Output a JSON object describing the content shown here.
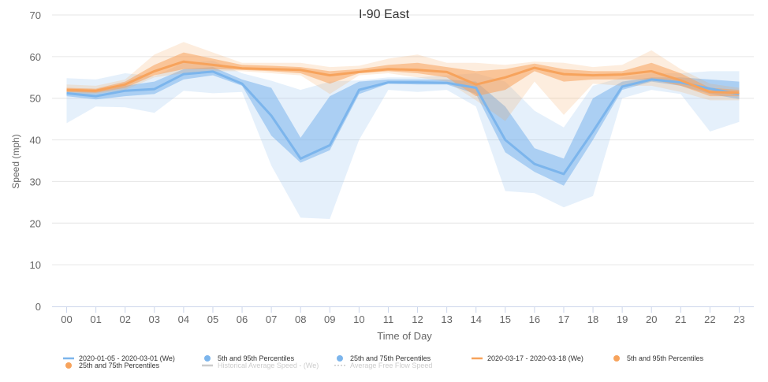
{
  "chart_data": {
    "type": "area",
    "title": "I-90 East",
    "xlabel": "Time of Day",
    "ylabel": "Speed (mph)",
    "ylim": [
      0,
      70
    ],
    "y_ticks": [
      0,
      10,
      20,
      30,
      40,
      50,
      60,
      70
    ],
    "categories": [
      "00",
      "01",
      "02",
      "03",
      "04",
      "05",
      "06",
      "07",
      "08",
      "09",
      "10",
      "11",
      "12",
      "13",
      "14",
      "15",
      "16",
      "17",
      "18",
      "19",
      "20",
      "21",
      "22",
      "23"
    ],
    "grid": true,
    "legend_position": "bottom",
    "series": [
      {
        "name": "2020-01-05 - 2020-03-01 (We)",
        "color": "#7cb5ec",
        "mean": [
          51.2,
          50.5,
          51.8,
          52.2,
          55.8,
          56.4,
          53.5,
          45.8,
          35.5,
          38.7,
          52.0,
          53.8,
          53.8,
          53.7,
          52.5,
          40.0,
          34.2,
          31.8,
          42.0,
          52.8,
          54.5,
          53.8,
          52.3,
          51.0
        ],
        "p5": [
          44.0,
          48.0,
          47.8,
          46.5,
          51.8,
          51.2,
          51.5,
          33.8,
          21.3,
          21.0,
          40.0,
          52.0,
          51.5,
          52.0,
          48.0,
          27.7,
          27.2,
          23.8,
          26.5,
          50.0,
          52.0,
          51.0,
          42.0,
          44.3
        ],
        "p95": [
          54.8,
          54.5,
          56.0,
          55.3,
          58.5,
          59.0,
          56.0,
          54.2,
          52.0,
          54.0,
          54.3,
          55.0,
          55.0,
          55.5,
          56.0,
          54.0,
          47.0,
          43.0,
          53.0,
          55.0,
          56.0,
          56.0,
          56.5,
          56.5
        ],
        "p25": [
          50.5,
          49.7,
          50.5,
          51.0,
          54.5,
          55.5,
          53.0,
          41.0,
          34.5,
          37.5,
          51.0,
          53.5,
          53.3,
          53.3,
          51.0,
          37.0,
          32.3,
          29.0,
          40.0,
          52.0,
          54.0,
          53.0,
          51.0,
          49.8
        ],
        "p75": [
          52.0,
          51.5,
          53.0,
          54.0,
          57.0,
          57.5,
          54.5,
          52.5,
          40.5,
          50.5,
          54.0,
          54.5,
          54.5,
          54.5,
          54.0,
          48.0,
          38.0,
          35.5,
          50.0,
          54.0,
          55.0,
          55.0,
          54.5,
          54.0
        ]
      },
      {
        "name": "2020-03-17 - 2020-03-18 (We)",
        "color": "#f7a35c",
        "mean": [
          52.0,
          51.8,
          53.3,
          56.5,
          58.8,
          58.0,
          57.2,
          57.0,
          56.8,
          55.5,
          56.3,
          57.0,
          56.8,
          56.3,
          53.3,
          55.0,
          57.3,
          55.8,
          55.5,
          55.7,
          56.5,
          54.3,
          51.5,
          51.3
        ],
        "p5": [
          51.0,
          51.0,
          52.0,
          55.0,
          56.0,
          56.5,
          56.5,
          56.0,
          55.5,
          51.0,
          55.5,
          56.0,
          55.0,
          54.0,
          49.5,
          44.5,
          54.0,
          46.0,
          53.5,
          53.0,
          53.0,
          51.5,
          49.5,
          49.5
        ],
        "p95": [
          53.3,
          53.0,
          54.5,
          60.5,
          63.5,
          61.0,
          58.5,
          58.5,
          58.5,
          57.5,
          57.8,
          59.5,
          60.5,
          58.5,
          58.5,
          58.0,
          58.8,
          58.5,
          57.5,
          58.0,
          61.5,
          57.0,
          53.5,
          52.5
        ],
        "p25": [
          51.5,
          51.3,
          52.5,
          55.5,
          57.0,
          57.0,
          56.8,
          56.5,
          56.0,
          53.5,
          56.0,
          56.5,
          56.0,
          55.0,
          50.5,
          52.0,
          56.5,
          54.0,
          54.5,
          54.5,
          54.5,
          53.0,
          50.5,
          50.5
        ],
        "p75": [
          52.5,
          52.3,
          54.0,
          58.0,
          61.0,
          59.5,
          58.0,
          57.8,
          57.5,
          56.5,
          57.0,
          58.0,
          58.5,
          57.5,
          56.5,
          57.0,
          58.3,
          57.0,
          56.5,
          56.5,
          58.5,
          56.0,
          52.5,
          52.0
        ]
      }
    ],
    "legend": [
      {
        "label": "2020-01-05 - 2020-03-01 (We)",
        "symbol": "line",
        "color": "#7cb5ec"
      },
      {
        "label": "5th and 95th Percentiles",
        "symbol": "dot",
        "color": "#7cb5ec"
      },
      {
        "label": "25th and 75th Percentiles",
        "symbol": "dot",
        "color": "#7cb5ec"
      },
      {
        "label": "2020-03-17 - 2020-03-18 (We)",
        "symbol": "line",
        "color": "#f7a35c"
      },
      {
        "label": "5th and 95th Percentiles",
        "symbol": "dot",
        "color": "#f7a35c"
      },
      {
        "label": "25th and 75th Percentiles",
        "symbol": "dot",
        "color": "#f7a35c"
      },
      {
        "label": "Historical Average Speed - (We)",
        "symbol": "line-disabled",
        "color": "#cccccc"
      },
      {
        "label": "Average Free Flow Speed",
        "symbol": "dash-disabled",
        "color": "#cccccc"
      }
    ]
  }
}
